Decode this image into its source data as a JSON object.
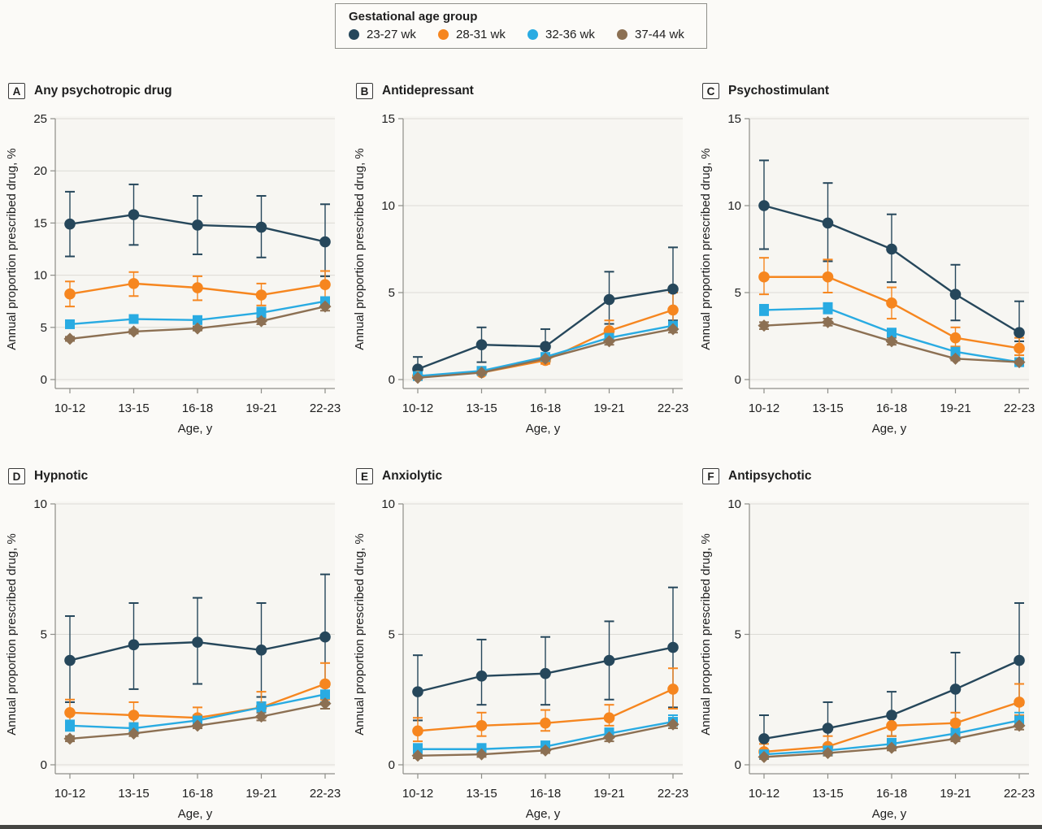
{
  "legend": {
    "title": "Gestational age group",
    "items": [
      {
        "label": "23-27 wk",
        "color": "#26475b"
      },
      {
        "label": "28-31 wk",
        "color": "#f6861f"
      },
      {
        "label": "32-36 wk",
        "color": "#29abe2"
      },
      {
        "label": "37-44 wk",
        "color": "#8c7053"
      }
    ]
  },
  "axes": {
    "xlabel": "Age, y",
    "ylabel": "Annual proportion prescribed drug, %"
  },
  "style_colors": {
    "grid": "#dcdbd5",
    "axis": "#8e8e89",
    "plot_bg": "#f7f6f2"
  },
  "chart_data": [
    {
      "type": "line",
      "panel": "A",
      "title": "Any psychotropic drug",
      "xlabel": "Age, y",
      "ylabel": "Annual proportion prescribed drug, %",
      "categories": [
        "10-12",
        "13-15",
        "16-18",
        "19-21",
        "22-23"
      ],
      "ylim": [
        0,
        25
      ],
      "yticks": [
        0,
        5,
        10,
        15,
        20,
        25
      ],
      "grid": true,
      "series": [
        {
          "name": "23-27 wk",
          "marker": "circle",
          "values": [
            14.9,
            15.8,
            14.8,
            14.6,
            13.2
          ],
          "ci_low": [
            11.8,
            12.9,
            12.0,
            11.7,
            9.9
          ],
          "ci_high": [
            18.0,
            18.7,
            17.6,
            17.6,
            16.8
          ]
        },
        {
          "name": "28-31 wk",
          "marker": "circle",
          "values": [
            8.2,
            9.2,
            8.8,
            8.1,
            9.1
          ],
          "ci_low": [
            7.0,
            8.0,
            7.6,
            7.1,
            7.8
          ],
          "ci_high": [
            9.4,
            10.3,
            9.9,
            9.2,
            10.4
          ]
        },
        {
          "name": "32-36 wk",
          "marker": "square",
          "values": [
            5.3,
            5.8,
            5.7,
            6.4,
            7.5
          ],
          "ci_low": [
            5.0,
            5.5,
            5.4,
            6.0,
            7.1
          ],
          "ci_high": [
            5.6,
            6.1,
            6.0,
            6.9,
            7.9
          ]
        },
        {
          "name": "37-44 wk",
          "marker": "diamond",
          "values": [
            3.9,
            4.6,
            4.9,
            5.6,
            7.0
          ],
          "ci_low": [
            3.7,
            4.4,
            4.7,
            5.3,
            6.6
          ],
          "ci_high": [
            4.1,
            4.8,
            5.1,
            5.9,
            7.4
          ]
        }
      ]
    },
    {
      "type": "line",
      "panel": "B",
      "title": "Antidepressant",
      "xlabel": "Age, y",
      "ylabel": "Annual proportion prescribed drug, %",
      "categories": [
        "10-12",
        "13-15",
        "16-18",
        "19-21",
        "22-23"
      ],
      "ylim": [
        0,
        15
      ],
      "yticks": [
        0,
        5,
        10,
        15
      ],
      "grid": true,
      "series": [
        {
          "name": "23-27 wk",
          "marker": "circle",
          "values": [
            0.6,
            2.0,
            1.9,
            4.6,
            5.2
          ],
          "ci_low": [
            0.2,
            1.0,
            1.4,
            3.2,
            3.4
          ],
          "ci_high": [
            1.3,
            3.0,
            2.9,
            6.2,
            7.6
          ]
        },
        {
          "name": "28-31 wk",
          "marker": "circle",
          "values": [
            0.2,
            0.4,
            1.1,
            2.8,
            4.0
          ],
          "ci_low": [
            0.1,
            0.3,
            0.9,
            2.3,
            3.2
          ],
          "ci_high": [
            0.4,
            0.6,
            1.4,
            3.4,
            5.0
          ]
        },
        {
          "name": "32-36 wk",
          "marker": "square",
          "values": [
            0.2,
            0.5,
            1.3,
            2.4,
            3.1
          ],
          "ci_low": [
            0.1,
            0.4,
            1.1,
            2.2,
            2.9
          ],
          "ci_high": [
            0.3,
            0.6,
            1.5,
            2.6,
            3.3
          ]
        },
        {
          "name": "37-44 wk",
          "marker": "diamond",
          "values": [
            0.1,
            0.4,
            1.2,
            2.2,
            2.9
          ],
          "ci_low": [
            0.05,
            0.3,
            1.0,
            2.0,
            2.7
          ],
          "ci_high": [
            0.2,
            0.5,
            1.3,
            2.4,
            3.1
          ]
        }
      ]
    },
    {
      "type": "line",
      "panel": "C",
      "title": "Psychostimulant",
      "xlabel": "Age, y",
      "ylabel": "Annual proportion prescribed drug, %",
      "categories": [
        "10-12",
        "13-15",
        "16-18",
        "19-21",
        "22-23"
      ],
      "ylim": [
        0,
        15
      ],
      "yticks": [
        0,
        5,
        10,
        15
      ],
      "grid": true,
      "series": [
        {
          "name": "23-27 wk",
          "marker": "circle",
          "values": [
            10.0,
            9.0,
            7.5,
            4.9,
            2.7
          ],
          "ci_low": [
            7.5,
            6.8,
            5.6,
            3.4,
            2.2
          ],
          "ci_high": [
            12.6,
            11.3,
            9.5,
            6.6,
            4.5
          ]
        },
        {
          "name": "28-31 wk",
          "marker": "circle",
          "values": [
            5.9,
            5.9,
            4.4,
            2.4,
            1.8
          ],
          "ci_low": [
            4.9,
            5.0,
            3.5,
            1.9,
            1.4
          ],
          "ci_high": [
            7.0,
            6.9,
            5.3,
            3.0,
            2.4
          ]
        },
        {
          "name": "32-36 wk",
          "marker": "square",
          "values": [
            4.0,
            4.1,
            2.7,
            1.6,
            1.0
          ],
          "ci_low": [
            3.7,
            3.8,
            2.5,
            1.4,
            0.9
          ],
          "ci_high": [
            4.3,
            4.4,
            2.9,
            1.8,
            1.2
          ]
        },
        {
          "name": "37-44 wk",
          "marker": "diamond",
          "values": [
            3.1,
            3.3,
            2.2,
            1.2,
            1.0
          ],
          "ci_low": [
            2.9,
            3.1,
            2.0,
            1.1,
            0.9
          ],
          "ci_high": [
            3.3,
            3.5,
            2.4,
            1.4,
            1.2
          ]
        }
      ]
    },
    {
      "type": "line",
      "panel": "D",
      "title": "Hypnotic",
      "xlabel": "Age, y",
      "ylabel": "Annual proportion prescribed drug, %",
      "categories": [
        "10-12",
        "13-15",
        "16-18",
        "19-21",
        "22-23"
      ],
      "ylim": [
        0,
        10
      ],
      "yticks": [
        0,
        5,
        10
      ],
      "grid": true,
      "series": [
        {
          "name": "23-27 wk",
          "marker": "circle",
          "values": [
            4.0,
            4.6,
            4.7,
            4.4,
            4.9
          ],
          "ci_low": [
            2.4,
            2.9,
            3.1,
            2.6,
            3.0
          ],
          "ci_high": [
            5.7,
            6.2,
            6.4,
            6.2,
            7.3
          ]
        },
        {
          "name": "28-31 wk",
          "marker": "circle",
          "values": [
            2.0,
            1.9,
            1.8,
            2.2,
            3.1
          ],
          "ci_low": [
            1.6,
            1.6,
            1.5,
            1.8,
            2.5
          ],
          "ci_high": [
            2.5,
            2.4,
            2.2,
            2.8,
            3.9
          ]
        },
        {
          "name": "32-36 wk",
          "marker": "square",
          "values": [
            1.5,
            1.4,
            1.7,
            2.2,
            2.7
          ],
          "ci_low": [
            1.3,
            1.2,
            1.5,
            2.0,
            2.4
          ],
          "ci_high": [
            1.7,
            1.6,
            1.9,
            2.4,
            3.0
          ]
        },
        {
          "name": "37-44 wk",
          "marker": "diamond",
          "values": [
            1.0,
            1.2,
            1.5,
            1.85,
            2.35
          ],
          "ci_low": [
            0.9,
            1.1,
            1.4,
            1.7,
            2.15
          ],
          "ci_high": [
            1.1,
            1.3,
            1.6,
            2.0,
            2.55
          ]
        }
      ]
    },
    {
      "type": "line",
      "panel": "E",
      "title": "Anxiolytic",
      "xlabel": "Age, y",
      "ylabel": "Annual proportion prescribed drug, %",
      "categories": [
        "10-12",
        "13-15",
        "16-18",
        "19-21",
        "22-23"
      ],
      "ylim": [
        0,
        10
      ],
      "yticks": [
        0,
        5,
        10
      ],
      "grid": true,
      "series": [
        {
          "name": "23-27 wk",
          "marker": "circle",
          "values": [
            2.8,
            3.4,
            3.5,
            4.0,
            4.5
          ],
          "ci_low": [
            1.7,
            2.3,
            2.3,
            2.5,
            2.2
          ],
          "ci_high": [
            4.2,
            4.8,
            4.9,
            5.5,
            6.8
          ]
        },
        {
          "name": "28-31 wk",
          "marker": "circle",
          "values": [
            1.3,
            1.5,
            1.6,
            1.8,
            2.9
          ],
          "ci_low": [
            0.9,
            1.1,
            1.3,
            1.5,
            2.15
          ],
          "ci_high": [
            1.8,
            2.0,
            2.1,
            2.3,
            3.7
          ]
        },
        {
          "name": "32-36 wk",
          "marker": "square",
          "values": [
            0.6,
            0.6,
            0.7,
            1.2,
            1.65
          ],
          "ci_low": [
            0.5,
            0.5,
            0.6,
            1.05,
            1.5
          ],
          "ci_high": [
            0.8,
            0.8,
            0.9,
            1.4,
            1.9
          ]
        },
        {
          "name": "37-44 wk",
          "marker": "diamond",
          "values": [
            0.35,
            0.4,
            0.55,
            1.05,
            1.55
          ],
          "ci_low": [
            0.25,
            0.3,
            0.45,
            0.9,
            1.4
          ],
          "ci_high": [
            0.45,
            0.5,
            0.65,
            1.2,
            1.7
          ]
        }
      ]
    },
    {
      "type": "line",
      "panel": "F",
      "title": "Antipsychotic",
      "xlabel": "Age, y",
      "ylabel": "Annual proportion prescribed drug, %",
      "categories": [
        "10-12",
        "13-15",
        "16-18",
        "19-21",
        "22-23"
      ],
      "ylim": [
        0,
        10
      ],
      "yticks": [
        0,
        5,
        10
      ],
      "grid": true,
      "series": [
        {
          "name": "23-27 wk",
          "marker": "circle",
          "values": [
            1.0,
            1.4,
            1.9,
            2.9,
            4.0
          ],
          "ci_low": [
            0.5,
            0.7,
            1.1,
            1.7,
            2.3
          ],
          "ci_high": [
            1.9,
            2.4,
            2.8,
            4.3,
            6.2
          ]
        },
        {
          "name": "28-31 wk",
          "marker": "circle",
          "values": [
            0.5,
            0.7,
            1.5,
            1.6,
            2.4
          ],
          "ci_low": [
            0.3,
            0.5,
            1.1,
            1.2,
            1.9
          ],
          "ci_high": [
            0.8,
            1.1,
            1.9,
            2.0,
            3.1
          ]
        },
        {
          "name": "32-36 wk",
          "marker": "square",
          "values": [
            0.4,
            0.55,
            0.8,
            1.2,
            1.7
          ],
          "ci_low": [
            0.3,
            0.45,
            0.65,
            1.05,
            1.5
          ],
          "ci_high": [
            0.5,
            0.7,
            1.0,
            1.4,
            2.0
          ]
        },
        {
          "name": "37-44 wk",
          "marker": "diamond",
          "values": [
            0.3,
            0.45,
            0.65,
            1.0,
            1.5
          ],
          "ci_low": [
            0.22,
            0.35,
            0.55,
            0.9,
            1.35
          ],
          "ci_high": [
            0.4,
            0.55,
            0.8,
            1.15,
            1.7
          ]
        }
      ]
    }
  ]
}
